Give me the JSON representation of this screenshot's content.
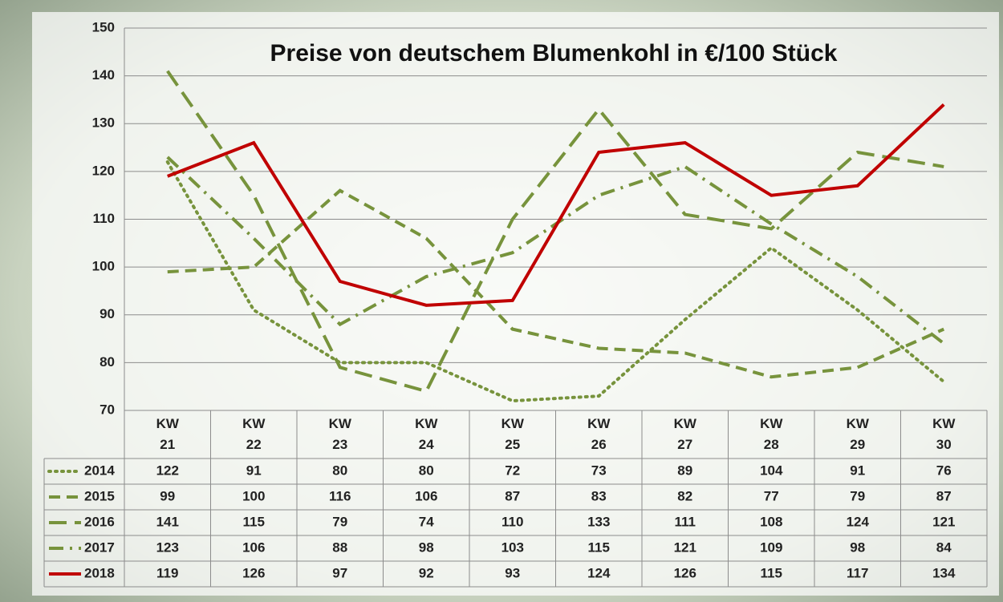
{
  "chart_data": {
    "type": "line",
    "title": "Preise von deutschem Blumenkohl in €/100 Stück",
    "categories": [
      "KW 21",
      "KW 22",
      "KW 23",
      "KW 24",
      "KW 25",
      "KW 26",
      "KW 27",
      "KW 28",
      "KW 29",
      "KW 30"
    ],
    "series": [
      {
        "name": "2014",
        "color": "#77933c",
        "line_style": "dotted",
        "values": [
          122,
          91,
          80,
          80,
          72,
          73,
          89,
          104,
          91,
          76
        ]
      },
      {
        "name": "2015",
        "color": "#77933c",
        "line_style": "dashed",
        "values": [
          99,
          100,
          116,
          106,
          87,
          83,
          82,
          77,
          79,
          87
        ]
      },
      {
        "name": "2016",
        "color": "#77933c",
        "line_style": "long-dashed",
        "values": [
          141,
          115,
          79,
          74,
          110,
          133,
          111,
          108,
          124,
          121
        ]
      },
      {
        "name": "2017",
        "color": "#77933c",
        "line_style": "dash-dot",
        "values": [
          123,
          106,
          88,
          98,
          103,
          115,
          121,
          109,
          98,
          84
        ]
      },
      {
        "name": "2018",
        "color": "#c00000",
        "line_style": "solid",
        "values": [
          119,
          126,
          97,
          92,
          93,
          124,
          126,
          115,
          117,
          134
        ]
      }
    ],
    "ylim": [
      70,
      150
    ],
    "yticks": [
      70,
      80,
      90,
      100,
      110,
      120,
      130,
      140,
      150
    ],
    "grid": true,
    "data_table": true
  }
}
